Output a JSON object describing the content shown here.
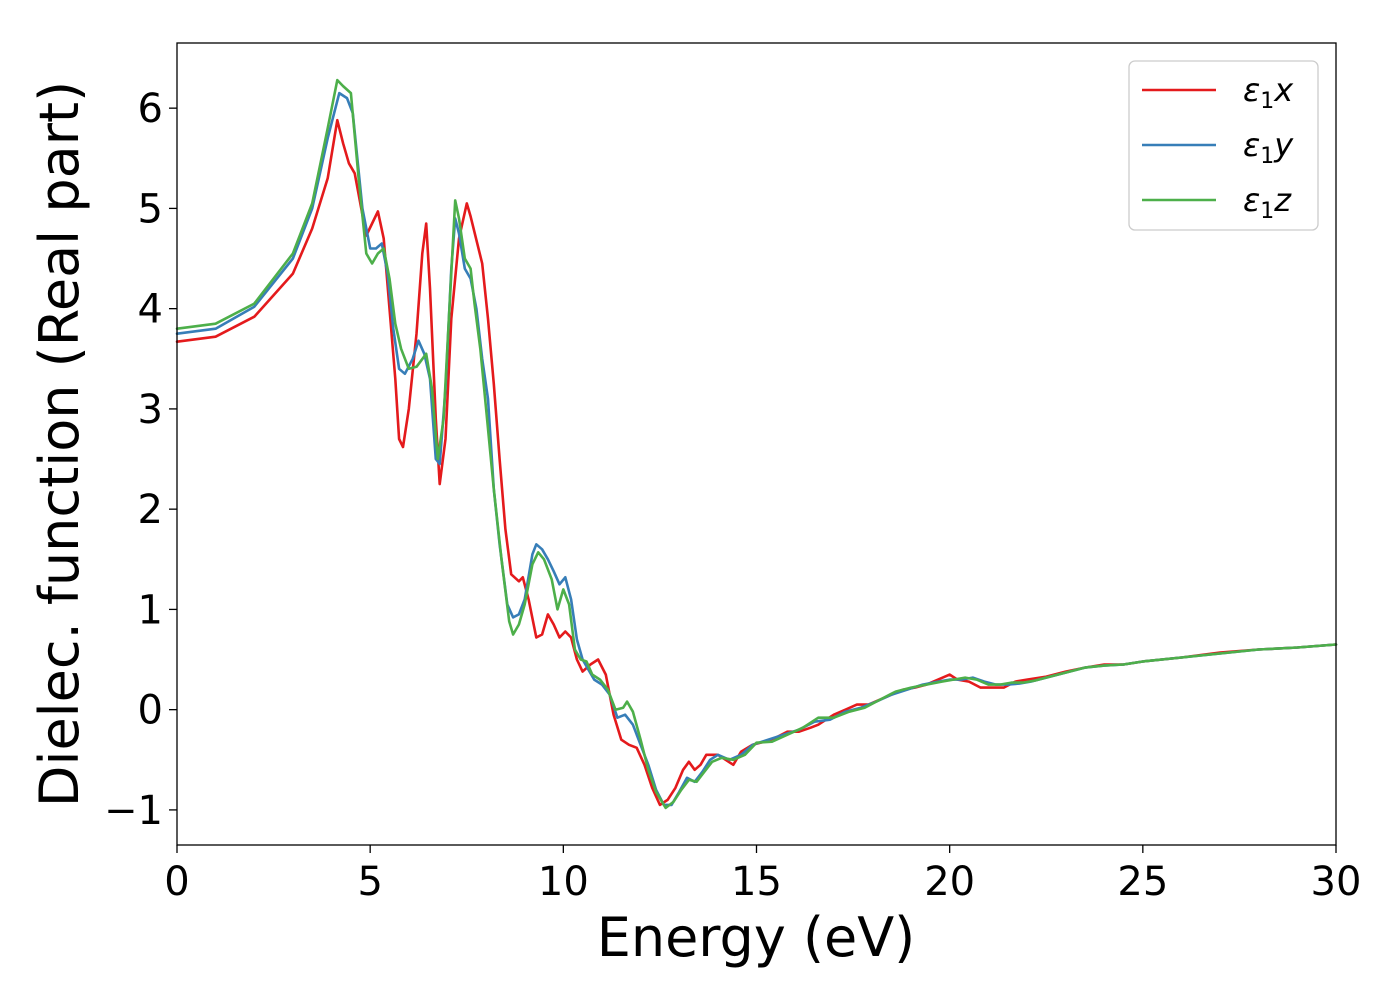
{
  "chart_data": {
    "type": "line",
    "xlabel": "Energy (eV)",
    "ylabel": "Dielec. function (Real part)",
    "xlim": [
      0,
      30
    ],
    "ylim": [
      -1.35,
      6.65
    ],
    "xticks": [
      0,
      5,
      10,
      15,
      20,
      25,
      30
    ],
    "xtick_labels": [
      "0",
      "5",
      "10",
      "15",
      "20",
      "25",
      "30"
    ],
    "yticks": [
      -1,
      0,
      1,
      2,
      3,
      4,
      5,
      6
    ],
    "ytick_labels": [
      "−1",
      "0",
      "1",
      "2",
      "3",
      "4",
      "5",
      "6"
    ],
    "grid": false,
    "legend_position": "top-right",
    "series": [
      {
        "name": "ε1x",
        "legend": {
          "symbol": "ε",
          "sub": "1",
          "var": "x"
        },
        "color": "#e41a1c",
        "points": [
          [
            0,
            3.67
          ],
          [
            1,
            3.72
          ],
          [
            2,
            3.92
          ],
          [
            3,
            4.35
          ],
          [
            3.5,
            4.8
          ],
          [
            3.9,
            5.3
          ],
          [
            4.15,
            5.88
          ],
          [
            4.3,
            5.65
          ],
          [
            4.45,
            5.45
          ],
          [
            4.6,
            5.35
          ],
          [
            4.9,
            4.73
          ],
          [
            5.05,
            4.85
          ],
          [
            5.2,
            4.97
          ],
          [
            5.35,
            4.7
          ],
          [
            5.5,
            4.0
          ],
          [
            5.65,
            3.3
          ],
          [
            5.75,
            2.7
          ],
          [
            5.85,
            2.62
          ],
          [
            6.0,
            3.0
          ],
          [
            6.2,
            3.75
          ],
          [
            6.35,
            4.55
          ],
          [
            6.45,
            4.85
          ],
          [
            6.55,
            4.2
          ],
          [
            6.7,
            2.9
          ],
          [
            6.8,
            2.25
          ],
          [
            6.95,
            2.7
          ],
          [
            7.1,
            3.9
          ],
          [
            7.3,
            4.7
          ],
          [
            7.5,
            5.05
          ],
          [
            7.6,
            4.92
          ],
          [
            7.9,
            4.45
          ],
          [
            8.05,
            3.9
          ],
          [
            8.2,
            3.25
          ],
          [
            8.35,
            2.5
          ],
          [
            8.5,
            1.8
          ],
          [
            8.65,
            1.35
          ],
          [
            8.85,
            1.28
          ],
          [
            8.95,
            1.32
          ],
          [
            9.1,
            1.1
          ],
          [
            9.3,
            0.72
          ],
          [
            9.45,
            0.75
          ],
          [
            9.6,
            0.95
          ],
          [
            9.75,
            0.85
          ],
          [
            9.9,
            0.72
          ],
          [
            10.05,
            0.78
          ],
          [
            10.2,
            0.72
          ],
          [
            10.35,
            0.5
          ],
          [
            10.5,
            0.38
          ],
          [
            10.7,
            0.45
          ],
          [
            10.9,
            0.5
          ],
          [
            11.1,
            0.35
          ],
          [
            11.3,
            -0.05
          ],
          [
            11.5,
            -0.3
          ],
          [
            11.7,
            -0.35
          ],
          [
            11.9,
            -0.38
          ],
          [
            12.1,
            -0.55
          ],
          [
            12.3,
            -0.78
          ],
          [
            12.5,
            -0.95
          ],
          [
            12.7,
            -0.9
          ],
          [
            12.9,
            -0.78
          ],
          [
            13.1,
            -0.6
          ],
          [
            13.25,
            -0.52
          ],
          [
            13.4,
            -0.6
          ],
          [
            13.55,
            -0.55
          ],
          [
            13.7,
            -0.45
          ],
          [
            14.0,
            -0.45
          ],
          [
            14.2,
            -0.5
          ],
          [
            14.4,
            -0.55
          ],
          [
            14.6,
            -0.42
          ],
          [
            14.9,
            -0.35
          ],
          [
            15.2,
            -0.32
          ],
          [
            15.5,
            -0.28
          ],
          [
            15.8,
            -0.22
          ],
          [
            16.1,
            -0.22
          ],
          [
            16.4,
            -0.18
          ],
          [
            16.6,
            -0.15
          ],
          [
            16.8,
            -0.1
          ],
          [
            17.0,
            -0.05
          ],
          [
            17.3,
            0.0
          ],
          [
            17.6,
            0.05
          ],
          [
            17.9,
            0.05
          ],
          [
            18.2,
            0.1
          ],
          [
            18.5,
            0.15
          ],
          [
            18.8,
            0.2
          ],
          [
            19.1,
            0.22
          ],
          [
            19.4,
            0.25
          ],
          [
            19.7,
            0.3
          ],
          [
            20.0,
            0.35
          ],
          [
            20.2,
            0.3
          ],
          [
            20.5,
            0.28
          ],
          [
            20.8,
            0.22
          ],
          [
            21.1,
            0.22
          ],
          [
            21.4,
            0.22
          ],
          [
            21.7,
            0.28
          ],
          [
            22.0,
            0.3
          ],
          [
            22.5,
            0.33
          ],
          [
            23.0,
            0.38
          ],
          [
            23.5,
            0.42
          ],
          [
            24.0,
            0.45
          ],
          [
            24.5,
            0.45
          ],
          [
            25.0,
            0.48
          ],
          [
            26.0,
            0.52
          ],
          [
            27.0,
            0.57
          ],
          [
            28.0,
            0.6
          ],
          [
            29.0,
            0.62
          ],
          [
            30.0,
            0.65
          ]
        ]
      },
      {
        "name": "ε1y",
        "legend": {
          "symbol": "ε",
          "sub": "1",
          "var": "y"
        },
        "color": "#377eb8",
        "points": [
          [
            0,
            3.75
          ],
          [
            1,
            3.8
          ],
          [
            2,
            4.02
          ],
          [
            3,
            4.5
          ],
          [
            3.5,
            5.0
          ],
          [
            3.9,
            5.7
          ],
          [
            4.2,
            6.15
          ],
          [
            4.4,
            6.1
          ],
          [
            4.55,
            5.95
          ],
          [
            4.8,
            5.0
          ],
          [
            5.0,
            4.6
          ],
          [
            5.15,
            4.6
          ],
          [
            5.3,
            4.65
          ],
          [
            5.45,
            4.35
          ],
          [
            5.6,
            3.8
          ],
          [
            5.75,
            3.4
          ],
          [
            5.9,
            3.35
          ],
          [
            6.1,
            3.5
          ],
          [
            6.25,
            3.68
          ],
          [
            6.4,
            3.55
          ],
          [
            6.55,
            3.3
          ],
          [
            6.7,
            2.5
          ],
          [
            6.8,
            2.45
          ],
          [
            6.95,
            3.2
          ],
          [
            7.1,
            4.4
          ],
          [
            7.2,
            4.9
          ],
          [
            7.3,
            4.75
          ],
          [
            7.45,
            4.4
          ],
          [
            7.6,
            4.3
          ],
          [
            7.75,
            4.0
          ],
          [
            7.9,
            3.5
          ],
          [
            8.05,
            3.1
          ],
          [
            8.2,
            2.2
          ],
          [
            8.35,
            1.65
          ],
          [
            8.55,
            1.05
          ],
          [
            8.7,
            0.92
          ],
          [
            8.85,
            0.95
          ],
          [
            9.0,
            1.1
          ],
          [
            9.2,
            1.55
          ],
          [
            9.3,
            1.65
          ],
          [
            9.45,
            1.6
          ],
          [
            9.6,
            1.5
          ],
          [
            9.75,
            1.38
          ],
          [
            9.9,
            1.25
          ],
          [
            10.05,
            1.32
          ],
          [
            10.2,
            1.1
          ],
          [
            10.35,
            0.7
          ],
          [
            10.5,
            0.5
          ],
          [
            10.65,
            0.4
          ],
          [
            10.8,
            0.3
          ],
          [
            11.0,
            0.25
          ],
          [
            11.2,
            0.15
          ],
          [
            11.4,
            -0.08
          ],
          [
            11.6,
            -0.05
          ],
          [
            11.8,
            -0.15
          ],
          [
            12.0,
            -0.35
          ],
          [
            12.2,
            -0.55
          ],
          [
            12.4,
            -0.8
          ],
          [
            12.6,
            -0.95
          ],
          [
            12.8,
            -0.95
          ],
          [
            13.0,
            -0.82
          ],
          [
            13.2,
            -0.68
          ],
          [
            13.4,
            -0.72
          ],
          [
            13.6,
            -0.62
          ],
          [
            13.8,
            -0.5
          ],
          [
            14.0,
            -0.45
          ],
          [
            14.3,
            -0.5
          ],
          [
            14.6,
            -0.45
          ],
          [
            14.9,
            -0.35
          ],
          [
            15.3,
            -0.3
          ],
          [
            15.7,
            -0.25
          ],
          [
            16.1,
            -0.2
          ],
          [
            16.5,
            -0.12
          ],
          [
            16.9,
            -0.1
          ],
          [
            17.3,
            -0.02
          ],
          [
            17.7,
            0.02
          ],
          [
            18.1,
            0.08
          ],
          [
            18.5,
            0.15
          ],
          [
            18.9,
            0.2
          ],
          [
            19.3,
            0.25
          ],
          [
            19.7,
            0.28
          ],
          [
            20.0,
            0.3
          ],
          [
            20.3,
            0.3
          ],
          [
            20.6,
            0.32
          ],
          [
            20.9,
            0.28
          ],
          [
            21.2,
            0.25
          ],
          [
            21.5,
            0.25
          ],
          [
            21.8,
            0.26
          ],
          [
            22.1,
            0.28
          ],
          [
            22.5,
            0.32
          ],
          [
            23.0,
            0.37
          ],
          [
            23.5,
            0.42
          ],
          [
            24.0,
            0.44
          ],
          [
            24.5,
            0.45
          ],
          [
            25.0,
            0.48
          ],
          [
            26.0,
            0.52
          ],
          [
            27.0,
            0.56
          ],
          [
            28.0,
            0.6
          ],
          [
            29.0,
            0.62
          ],
          [
            30.0,
            0.65
          ]
        ]
      },
      {
        "name": "ε1z",
        "legend": {
          "symbol": "ε",
          "sub": "1",
          "var": "z"
        },
        "color": "#4daf4a",
        "points": [
          [
            0,
            3.8
          ],
          [
            1,
            3.85
          ],
          [
            2,
            4.05
          ],
          [
            3,
            4.55
          ],
          [
            3.5,
            5.05
          ],
          [
            3.9,
            5.8
          ],
          [
            4.15,
            6.28
          ],
          [
            4.3,
            6.22
          ],
          [
            4.5,
            6.15
          ],
          [
            4.7,
            5.3
          ],
          [
            4.9,
            4.55
          ],
          [
            5.05,
            4.45
          ],
          [
            5.2,
            4.55
          ],
          [
            5.35,
            4.6
          ],
          [
            5.5,
            4.3
          ],
          [
            5.65,
            3.85
          ],
          [
            5.8,
            3.6
          ],
          [
            6.0,
            3.4
          ],
          [
            6.2,
            3.42
          ],
          [
            6.45,
            3.55
          ],
          [
            6.6,
            3.2
          ],
          [
            6.75,
            2.5
          ],
          [
            6.9,
            2.9
          ],
          [
            7.05,
            4.0
          ],
          [
            7.2,
            5.08
          ],
          [
            7.3,
            4.9
          ],
          [
            7.45,
            4.5
          ],
          [
            7.6,
            4.4
          ],
          [
            7.7,
            4.05
          ],
          [
            7.85,
            3.6
          ],
          [
            8.0,
            3.0
          ],
          [
            8.2,
            2.2
          ],
          [
            8.4,
            1.5
          ],
          [
            8.6,
            0.88
          ],
          [
            8.7,
            0.75
          ],
          [
            8.85,
            0.85
          ],
          [
            9.0,
            1.05
          ],
          [
            9.2,
            1.45
          ],
          [
            9.35,
            1.57
          ],
          [
            9.5,
            1.5
          ],
          [
            9.7,
            1.3
          ],
          [
            9.85,
            1.0
          ],
          [
            10.0,
            1.2
          ],
          [
            10.15,
            1.05
          ],
          [
            10.3,
            0.6
          ],
          [
            10.45,
            0.5
          ],
          [
            10.6,
            0.48
          ],
          [
            10.75,
            0.35
          ],
          [
            10.95,
            0.3
          ],
          [
            11.15,
            0.2
          ],
          [
            11.35,
            0.0
          ],
          [
            11.55,
            0.02
          ],
          [
            11.65,
            0.08
          ],
          [
            11.8,
            -0.02
          ],
          [
            12.0,
            -0.3
          ],
          [
            12.2,
            -0.6
          ],
          [
            12.4,
            -0.82
          ],
          [
            12.65,
            -0.98
          ],
          [
            12.85,
            -0.92
          ],
          [
            13.05,
            -0.8
          ],
          [
            13.25,
            -0.7
          ],
          [
            13.45,
            -0.72
          ],
          [
            13.65,
            -0.62
          ],
          [
            13.85,
            -0.52
          ],
          [
            14.1,
            -0.48
          ],
          [
            14.4,
            -0.5
          ],
          [
            14.7,
            -0.45
          ],
          [
            15.0,
            -0.33
          ],
          [
            15.4,
            -0.32
          ],
          [
            15.8,
            -0.25
          ],
          [
            16.2,
            -0.18
          ],
          [
            16.6,
            -0.08
          ],
          [
            17.0,
            -0.08
          ],
          [
            17.4,
            -0.02
          ],
          [
            17.8,
            0.02
          ],
          [
            18.2,
            0.1
          ],
          [
            18.6,
            0.18
          ],
          [
            19.0,
            0.22
          ],
          [
            19.4,
            0.25
          ],
          [
            19.8,
            0.28
          ],
          [
            20.1,
            0.3
          ],
          [
            20.4,
            0.32
          ],
          [
            20.7,
            0.3
          ],
          [
            21.0,
            0.25
          ],
          [
            21.3,
            0.25
          ],
          [
            21.6,
            0.27
          ],
          [
            21.9,
            0.27
          ],
          [
            22.2,
            0.29
          ],
          [
            22.6,
            0.33
          ],
          [
            23.0,
            0.37
          ],
          [
            23.5,
            0.42
          ],
          [
            24.0,
            0.44
          ],
          [
            24.5,
            0.45
          ],
          [
            25.0,
            0.48
          ],
          [
            26.0,
            0.52
          ],
          [
            27.0,
            0.56
          ],
          [
            28.0,
            0.6
          ],
          [
            29.0,
            0.62
          ],
          [
            30.0,
            0.65
          ]
        ]
      }
    ]
  }
}
